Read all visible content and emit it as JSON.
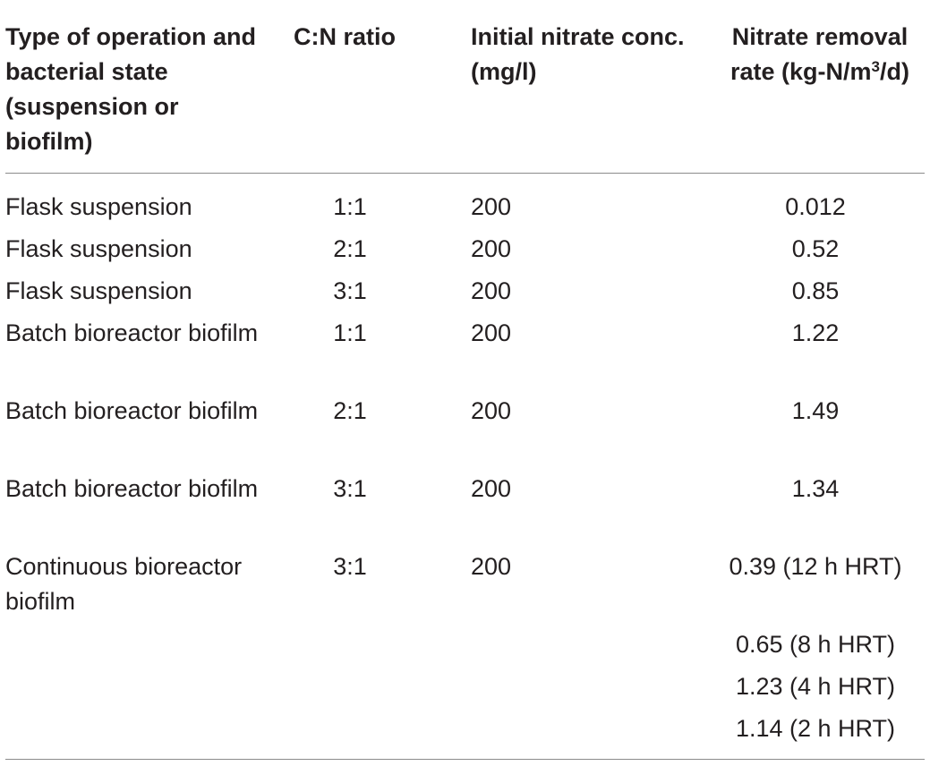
{
  "headers": {
    "type": "Type of operation and bacterial state (suspension or biofilm)",
    "cn_ratio": "C:N ratio",
    "initial_nitrate": "Initial nitrate conc. (mg/l)",
    "removal_rate_prefix": "Nitrate removal rate (kg-N/m",
    "removal_rate_sup": "3",
    "removal_rate_suffix": "/d)"
  },
  "rows": [
    {
      "type": "Flask suspension",
      "cn": "1:1",
      "initial": "200",
      "rate": "0.012"
    },
    {
      "type": "Flask suspension",
      "cn": "2:1",
      "initial": "200",
      "rate": "0.52"
    },
    {
      "type": "Flask suspension",
      "cn": "3:1",
      "initial": "200",
      "rate": "0.85"
    },
    {
      "type": "Batch bioreactor biofilm",
      "cn": "1:1",
      "initial": "200",
      "rate": "1.22"
    },
    {
      "type": "Batch bioreactor biofilm",
      "cn": "2:1",
      "initial": "200",
      "rate": "1.49"
    },
    {
      "type": "Batch bioreactor biofilm",
      "cn": "3:1",
      "initial": "200",
      "rate": "1.34"
    },
    {
      "type": "Continuous bioreactor biofilm",
      "cn": "3:1",
      "initial": "200",
      "rate": "0.39 (12 h HRT)"
    },
    {
      "type": "",
      "cn": "",
      "initial": "",
      "rate": "0.65 (8 h HRT)"
    },
    {
      "type": "",
      "cn": "",
      "initial": "",
      "rate": "1.23 (4 h HRT)"
    },
    {
      "type": "",
      "cn": "",
      "initial": "",
      "rate": "1.14 (2 h HRT)"
    }
  ]
}
